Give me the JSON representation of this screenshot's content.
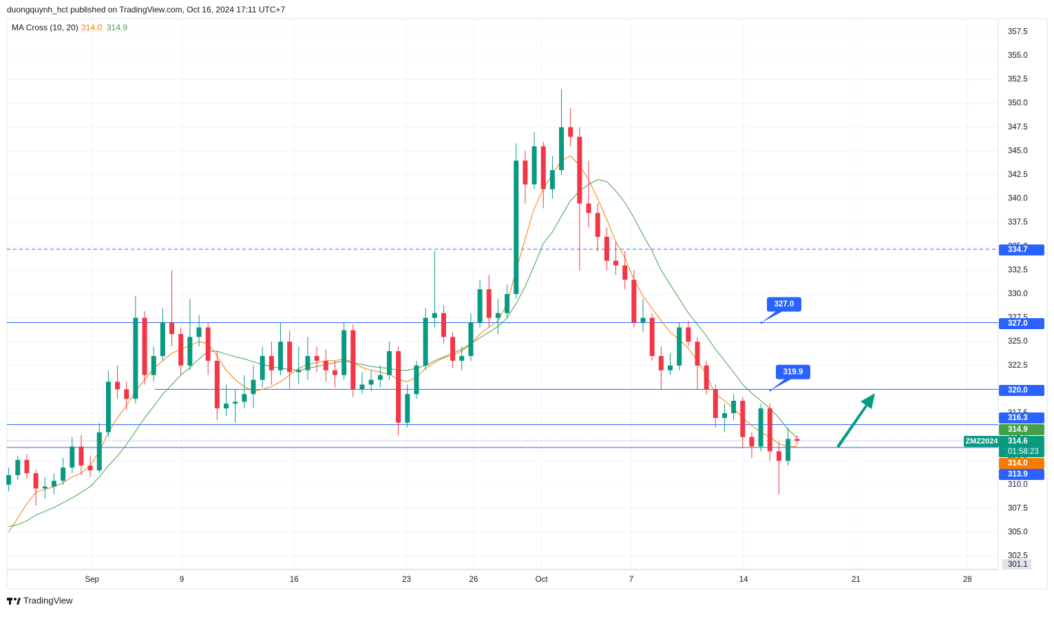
{
  "header": "duongquynh_hct published on TradingView.com, Oct 16, 2024 17:11 UTC+7",
  "footer": "TradingView",
  "chart_data": {
    "type": "candlestick",
    "symbol": "ZMZ2024",
    "last_price": 314.6,
    "countdown": "01:58:23",
    "up_color": "#089981",
    "down_color": "#f23645",
    "xlim": [
      -0.2,
      109.2
    ],
    "xticks": [
      {
        "value": 9.2,
        "label": "Sep"
      },
      {
        "value": 19.1,
        "label": "9"
      },
      {
        "value": 31.5,
        "label": "16"
      },
      {
        "value": 43.9,
        "label": "23"
      },
      {
        "value": 51.3,
        "label": "26"
      },
      {
        "value": 58.8,
        "label": "Oct"
      },
      {
        "value": 68.7,
        "label": "7"
      },
      {
        "value": 81.1,
        "label": "14"
      },
      {
        "value": 93.5,
        "label": "21"
      },
      {
        "value": 105.8,
        "label": "28"
      }
    ],
    "ylim": [
      301.1,
      358.9
    ],
    "yticks": [
      302.5,
      {
        "value": 305,
        "label": "305.0"
      },
      307.5,
      {
        "value": 310,
        "label": "310.0"
      },
      312.5,
      {
        "value": 315,
        "label": "315.0"
      },
      317.5,
      {
        "value": 320,
        "label": "320.0"
      },
      322.5,
      {
        "value": 325,
        "label": "325.0"
      },
      327.5,
      {
        "value": 330,
        "label": "330.0"
      },
      332.5,
      {
        "value": 335,
        "label": "335.0"
      },
      337.5,
      {
        "value": 340,
        "label": "340.0"
      },
      342.5,
      {
        "value": 345,
        "label": "345.0"
      },
      347.5,
      {
        "value": 350,
        "label": "350.0"
      },
      352.5,
      {
        "value": 355,
        "label": "355.0"
      },
      357.5
    ],
    "grid": true,
    "open": [
      310.0,
      311.0,
      312.6,
      311.2,
      309.6,
      309.8,
      310.4,
      311.8,
      314.0,
      312.0,
      311.5,
      315.5,
      320.8,
      320.0,
      319.0,
      327.5,
      321.5,
      323.5,
      327.0,
      325.8,
      322.5,
      325.5,
      326.5,
      323.0,
      318.0,
      318.5,
      318.7,
      319.5,
      321.0,
      323.5,
      322.0,
      325.0,
      321.8,
      322.0,
      323.5,
      323.0,
      322.0,
      321.5,
      326.2,
      320.0,
      320.5,
      321.0,
      321.5,
      324.0,
      316.5,
      319.5,
      322.5,
      327.5,
      328.0,
      325.5,
      323.0,
      323.5,
      327.0,
      330.5,
      327.5,
      328.0,
      330.0,
      344.0,
      341.5,
      345.5,
      341.0,
      343.0,
      347.5,
      346.5,
      339.5,
      338.5,
      336.0,
      333.5,
      333.0,
      331.5,
      327.0,
      327.5,
      323.5,
      322.0,
      322.5,
      326.5,
      325.0,
      322.5,
      320.0,
      317.0,
      317.5,
      318.8,
      315.0,
      314.0,
      318.0,
      313.5,
      312.5,
      314.8
    ],
    "high": [
      311.8,
      313.0,
      313.2,
      311.6,
      310.8,
      311.2,
      312.8,
      315.0,
      315.2,
      313.0,
      316.5,
      322.0,
      322.5,
      320.8,
      329.8,
      328.2,
      324.5,
      328.5,
      332.5,
      326.5,
      329.5,
      327.8,
      327.0,
      324.0,
      320.5,
      320.0,
      321.5,
      322.5,
      324.5,
      325.0,
      327.0,
      326.2,
      324.5,
      325.5,
      324.5,
      324.2,
      323.0,
      327.0,
      326.8,
      321.8,
      322.0,
      322.5,
      325.0,
      324.5,
      320.5,
      323.0,
      328.5,
      334.5,
      328.8,
      326.0,
      324.5,
      328.0,
      331.5,
      332.0,
      329.5,
      331.0,
      345.8,
      345.0,
      347.0,
      346.0,
      344.5,
      351.5,
      349.5,
      347.5,
      344.0,
      339.5,
      337.0,
      335.5,
      334.5,
      332.5,
      329.5,
      328.0,
      324.5,
      323.8,
      327.0,
      327.2,
      325.5,
      323.0,
      320.5,
      318.5,
      319.5,
      319.2,
      315.5,
      318.5,
      318.5,
      314.5,
      316.0,
      315.2
    ],
    "low": [
      309.3,
      310.5,
      310.6,
      307.8,
      308.5,
      309.0,
      310.0,
      311.2,
      311.0,
      310.8,
      311.2,
      315.0,
      319.0,
      317.8,
      318.5,
      320.5,
      320.8,
      323.0,
      324.5,
      321.5,
      322.0,
      324.5,
      321.5,
      316.8,
      317.2,
      316.5,
      318.0,
      318.0,
      320.2,
      320.5,
      321.5,
      320.0,
      320.5,
      321.0,
      321.8,
      320.8,
      320.2,
      321.0,
      319.2,
      319.5,
      319.8,
      320.2,
      321.0,
      315.2,
      316.0,
      319.0,
      322.0,
      326.5,
      324.8,
      322.2,
      322.0,
      323.0,
      326.5,
      326.5,
      325.8,
      327.5,
      329.5,
      339.5,
      341.0,
      339.0,
      340.0,
      342.5,
      345.5,
      332.5,
      337.0,
      334.5,
      332.5,
      332.0,
      330.5,
      326.5,
      326.0,
      323.0,
      320.0,
      321.5,
      322.0,
      324.5,
      320.0,
      319.5,
      316.0,
      315.5,
      316.8,
      313.8,
      312.8,
      313.5,
      312.5,
      309.0,
      312.0,
      314.2
    ],
    "close": [
      311.0,
      312.6,
      311.2,
      309.6,
      309.8,
      310.4,
      311.8,
      314.0,
      312.0,
      311.5,
      315.5,
      320.8,
      320.0,
      319.0,
      327.5,
      321.5,
      323.5,
      327.0,
      325.8,
      322.5,
      325.5,
      326.5,
      323.0,
      318.0,
      318.5,
      318.7,
      319.5,
      321.0,
      323.5,
      322.0,
      325.0,
      321.8,
      322.0,
      323.5,
      323.0,
      322.0,
      321.5,
      326.2,
      320.0,
      320.5,
      321.0,
      321.5,
      324.0,
      316.5,
      319.5,
      322.5,
      327.5,
      328.0,
      325.5,
      323.0,
      323.5,
      327.0,
      330.5,
      327.5,
      328.0,
      330.0,
      344.0,
      341.5,
      345.5,
      341.0,
      343.0,
      347.5,
      346.5,
      339.5,
      338.5,
      336.0,
      333.5,
      333.0,
      331.5,
      327.0,
      327.5,
      323.5,
      322.0,
      322.5,
      326.5,
      325.0,
      322.5,
      320.0,
      317.0,
      317.5,
      318.8,
      315.0,
      314.0,
      318.0,
      313.5,
      312.5,
      314.8,
      314.6
    ],
    "indicator": {
      "title": "MA Cross (10, 20)",
      "lines": [
        {
          "color": "#f57c00",
          "last": {
            "value": 314,
            "label": "314.0"
          },
          "values": [
            305.0,
            306.5,
            308.0,
            309.2,
            309.5,
            309.8,
            310.2,
            310.8,
            311.2,
            312.0,
            313.5,
            315.5,
            317.0,
            318.3,
            319.8,
            321.0,
            322.2,
            323.0,
            323.8,
            324.2,
            324.6,
            325.0,
            324.8,
            323.5,
            322.0,
            321.0,
            320.3,
            319.8,
            320.0,
            320.3,
            320.8,
            321.5,
            322.2,
            322.6,
            322.8,
            323.0,
            323.0,
            323.2,
            322.8,
            322.3,
            322.0,
            321.8,
            321.6,
            321.0,
            320.8,
            321.3,
            322.2,
            322.8,
            323.3,
            323.6,
            324.0,
            324.8,
            325.8,
            326.5,
            327.2,
            329.0,
            332.5,
            335.8,
            339.0,
            341.0,
            342.6,
            344.0,
            344.5,
            343.5,
            342.0,
            340.0,
            337.8,
            335.5,
            333.8,
            331.5,
            329.8,
            328.5,
            327.2,
            326.0,
            325.2,
            324.3,
            323.0,
            321.5,
            319.5,
            318.8,
            318.0,
            317.0,
            316.2,
            315.5,
            315.0,
            314.3,
            314.0,
            314.0
          ]
        },
        {
          "color": "#43a047",
          "last": 314.9,
          "values": [
            305.6,
            305.8,
            306.2,
            306.8,
            307.2,
            307.6,
            308.1,
            308.6,
            309.2,
            309.8,
            310.8,
            312.0,
            313.0,
            314.2,
            315.6,
            317.0,
            318.2,
            319.5,
            320.5,
            321.5,
            322.3,
            323.2,
            324.0,
            324.0,
            323.7,
            323.4,
            323.2,
            322.9,
            322.6,
            322.4,
            322.2,
            322.1,
            322.0,
            322.2,
            322.4,
            322.6,
            322.8,
            323.0,
            322.8,
            322.6,
            322.4,
            322.3,
            322.2,
            322.0,
            322.0,
            322.2,
            322.5,
            323.0,
            323.4,
            323.8,
            324.2,
            324.8,
            325.4,
            326.0,
            326.6,
            327.5,
            329.0,
            330.8,
            333.0,
            335.3,
            336.5,
            338.2,
            339.8,
            340.8,
            341.5,
            342.0,
            341.8,
            340.8,
            339.6,
            338.0,
            336.2,
            334.5,
            332.5,
            331.0,
            329.5,
            328.0,
            326.8,
            325.6,
            324.2,
            323.0,
            321.8,
            320.5,
            319.6,
            318.8,
            318.0,
            317.0,
            315.8,
            314.9
          ]
        }
      ]
    },
    "levels": [
      334.7,
      {
        "value": 327,
        "label": "327.0"
      },
      {
        "value": 320,
        "label": "320.0"
      },
      316.3,
      313.9
    ],
    "level_color": "#2962ff",
    "annotations": [
      {
        "value": 327,
        "label": "327.0"
      },
      319.9
    ]
  }
}
